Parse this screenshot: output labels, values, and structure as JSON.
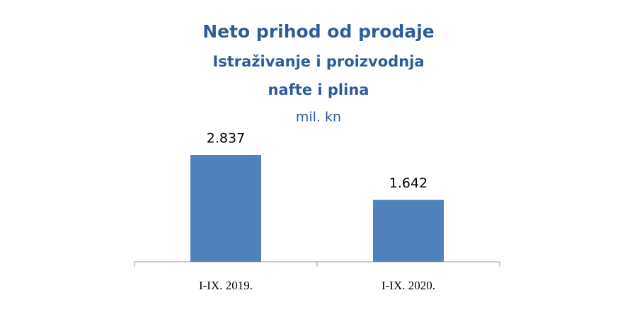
{
  "chart_data": {
    "type": "bar",
    "title": "Neto prihod od prodaje",
    "subtitle": [
      "Istraživanje i proizvodnja",
      "nafte i plina"
    ],
    "unit_label": "mil. kn",
    "categories": [
      "I-IX. 2019.",
      "I-IX. 2020."
    ],
    "values": [
      2837,
      1642
    ],
    "value_labels": [
      "2.837",
      "1.642"
    ],
    "color": "#4f81bd"
  }
}
